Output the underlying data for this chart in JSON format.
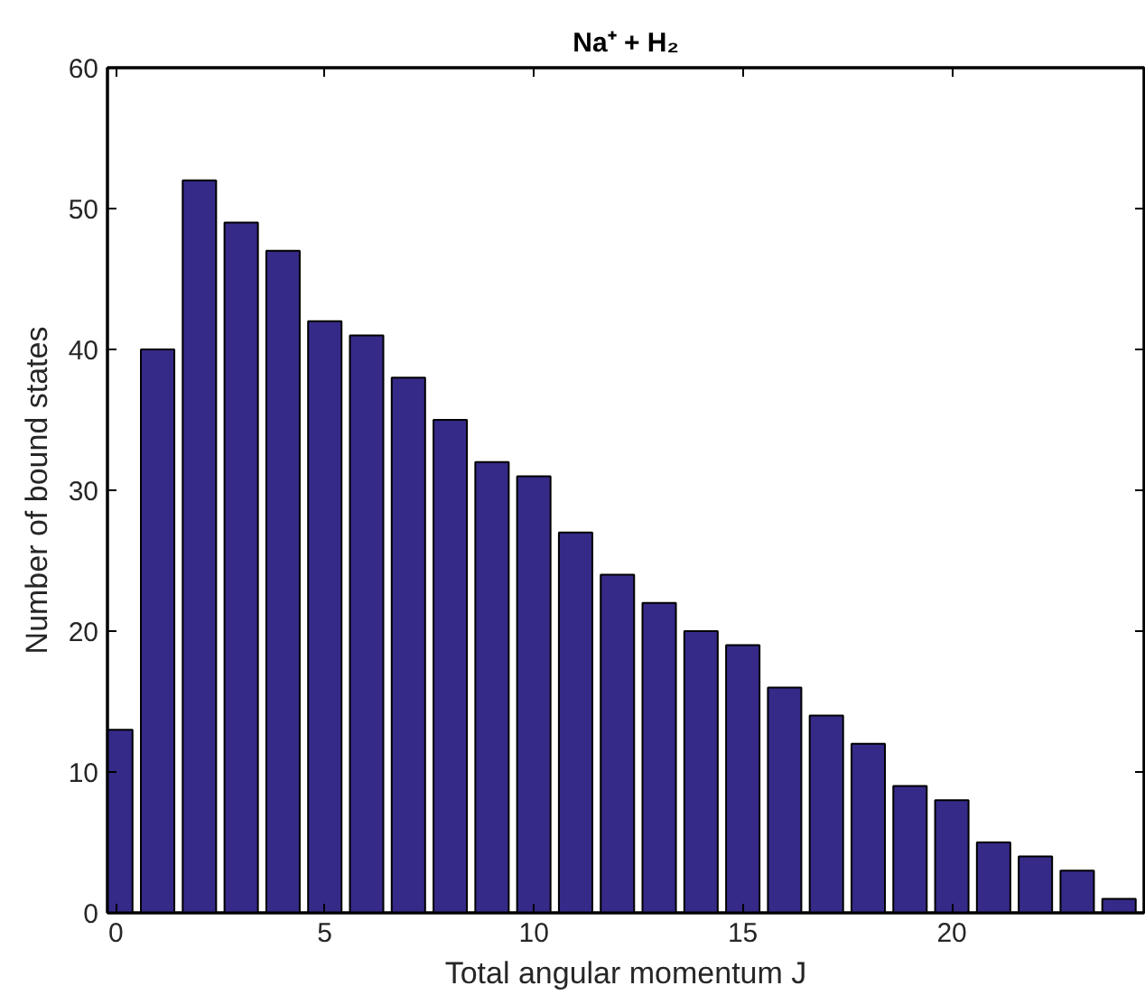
{
  "chart_data": {
    "type": "bar",
    "title": "Na⁺ + H₂",
    "xlabel": "Total angular momentum J",
    "ylabel": "Number of bound states",
    "x": [
      0,
      1,
      2,
      3,
      4,
      5,
      6,
      7,
      8,
      9,
      10,
      11,
      12,
      13,
      14,
      15,
      16,
      17,
      18,
      19,
      20,
      21,
      22,
      23,
      24
    ],
    "values": [
      13,
      40,
      52,
      49,
      47,
      42,
      41,
      38,
      35,
      32,
      31,
      27,
      24,
      22,
      20,
      19,
      16,
      14,
      12,
      9,
      8,
      5,
      4,
      3,
      1
    ],
    "color": "#352a87",
    "xlim": [
      -0.2,
      24.6
    ],
    "xticks": [
      0,
      5,
      10,
      15,
      20
    ],
    "ylim": [
      0,
      60
    ],
    "yticks": [
      0,
      10,
      20,
      30,
      40,
      50,
      60
    ]
  }
}
